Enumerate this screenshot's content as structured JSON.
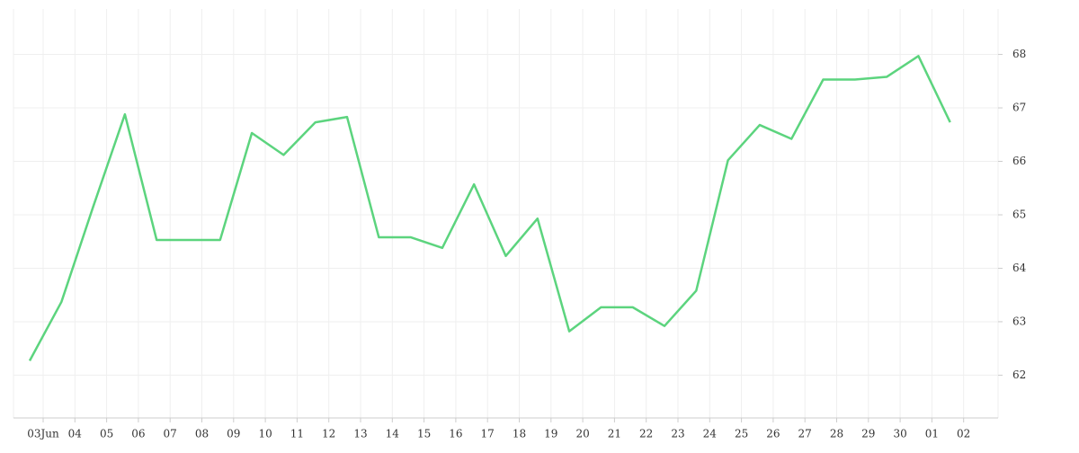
{
  "chart_data": {
    "type": "line",
    "categories": [
      "03Jun",
      "04",
      "05",
      "06",
      "07",
      "08",
      "09",
      "10",
      "11",
      "12",
      "13",
      "14",
      "15",
      "16",
      "17",
      "18",
      "19",
      "20",
      "21",
      "22",
      "23",
      "24",
      "25",
      "26",
      "27",
      "28",
      "29",
      "30",
      "01",
      "02"
    ],
    "series": [
      {
        "color": "#5cd47e",
        "values": [
          62.27,
          63.37,
          65.15,
          66.88,
          64.53,
          64.53,
          64.53,
          66.53,
          66.12,
          66.73,
          66.83,
          64.58,
          64.58,
          64.38,
          65.57,
          64.23,
          64.93,
          62.82,
          63.27,
          63.27,
          62.92,
          63.58,
          66.02,
          66.68,
          66.42,
          67.53,
          67.53,
          67.58,
          67.97,
          66.73
        ]
      }
    ],
    "ylim": [
      61.2,
      68.85
    ],
    "yticks": [
      62,
      63,
      64,
      65,
      66,
      67,
      68
    ],
    "grid": true
  }
}
